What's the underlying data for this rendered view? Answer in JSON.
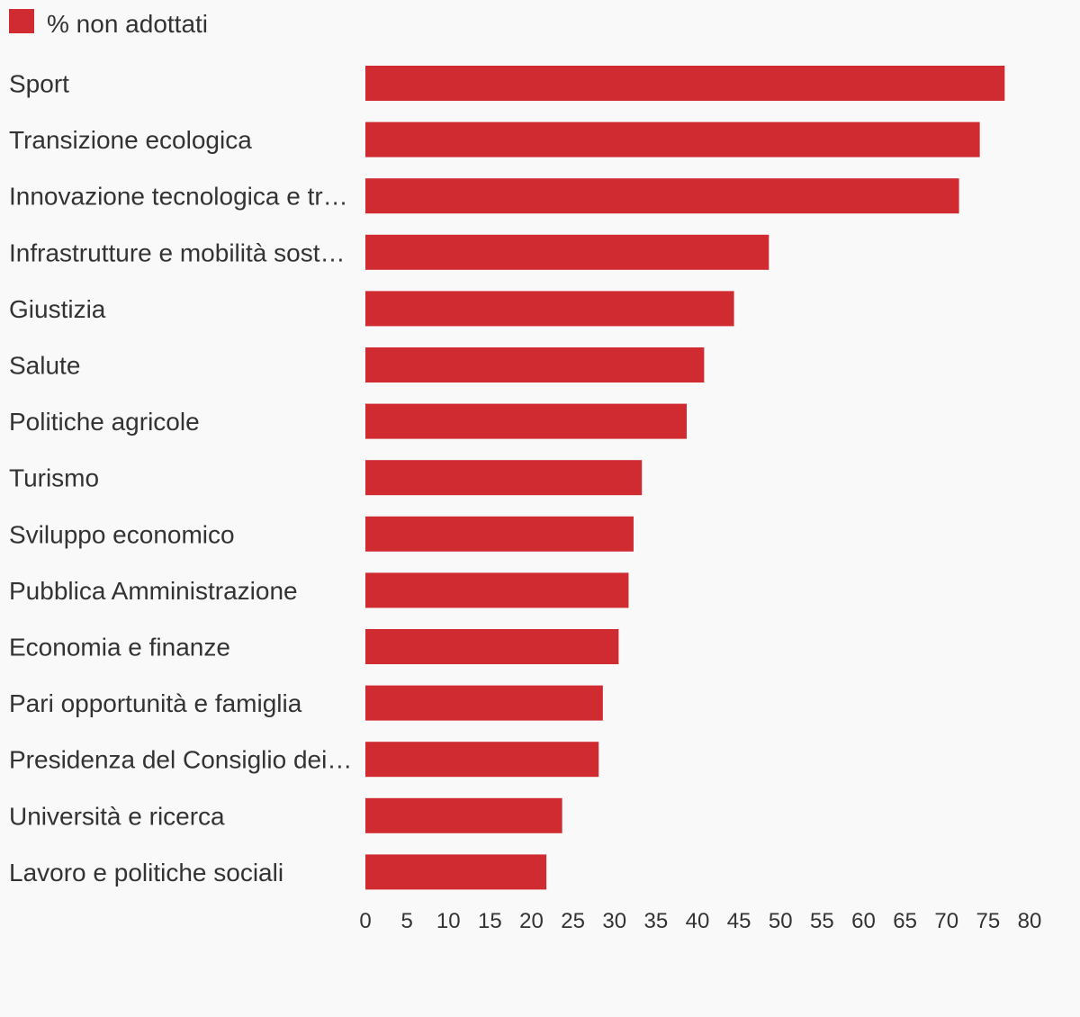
{
  "chart_data": {
    "type": "bar",
    "orientation": "horizontal",
    "legend": {
      "position": "top-left",
      "entries": [
        "% non adottati"
      ]
    },
    "series": [
      {
        "name": "% non adottati",
        "color": "#cf2b31",
        "values": [
          77,
          74,
          71.5,
          48.6,
          44.4,
          40.8,
          38.7,
          33.3,
          32.3,
          31.7,
          30.5,
          28.6,
          28.1,
          23.7,
          21.8
        ]
      }
    ],
    "categories": [
      "Sport",
      "Transizione ecologica",
      "Innovazione tecnologica e tr…",
      "Infrastrutture e mobilità sost…",
      "Giustizia",
      "Salute",
      "Politiche agricole",
      "Turismo",
      "Sviluppo economico",
      "Pubblica Amministrazione",
      "Economia e finanze",
      "Pari opportunità e famiglia",
      "Presidenza del Consiglio dei…",
      "Università e ricerca",
      "Lavoro e politiche sociali"
    ],
    "x_ticks": [
      "0",
      "5",
      "10",
      "15",
      "20",
      "25",
      "30",
      "35",
      "40",
      "45",
      "50",
      "55",
      "60",
      "65",
      "70",
      "75",
      "80"
    ],
    "xlim": [
      0,
      80
    ],
    "grid": false,
    "title": "",
    "xlabel": "",
    "ylabel": ""
  }
}
